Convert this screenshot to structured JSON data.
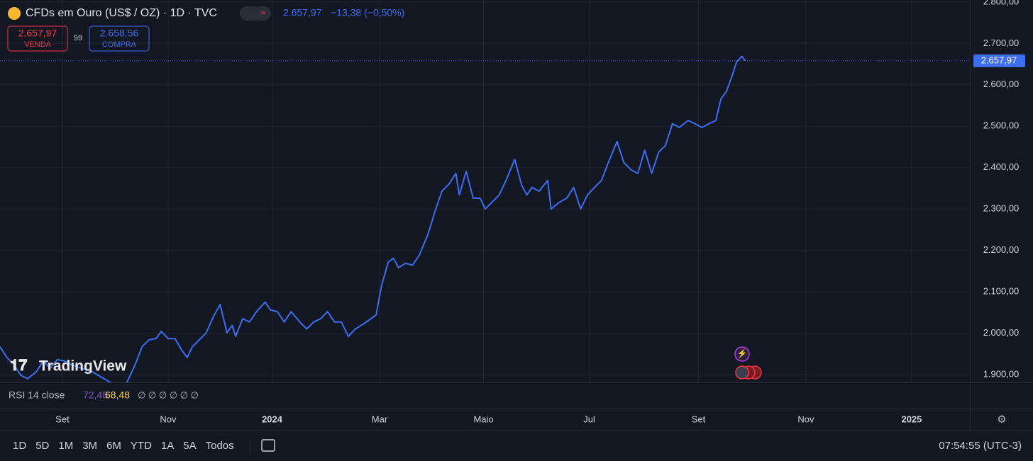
{
  "header": {
    "title": "CFDs em Ouro (US$ / OZ) · 1D · TVC",
    "price": "2.657,97",
    "change": "−13,38 (−0,50%)",
    "sell": {
      "price": "2.657,97",
      "label": "VENDA"
    },
    "spread": "59",
    "buy": {
      "price": "2.658,56",
      "label": "COMPRA"
    }
  },
  "watermark": "TradingView",
  "chart_data": {
    "type": "line",
    "color": "#3b6ef0",
    "grid": true,
    "x": [
      0,
      4,
      8,
      12,
      16,
      21,
      25,
      29,
      33,
      37,
      41,
      47,
      53,
      60,
      66,
      72,
      78,
      82,
      86,
      90,
      93,
      97,
      101,
      105,
      108,
      111,
      115,
      119,
      123,
      127,
      131,
      134,
      136,
      140,
      144,
      148,
      153,
      156,
      160,
      164,
      168,
      173,
      177,
      181,
      185,
      189,
      193,
      197,
      201,
      205,
      210,
      214,
      217,
      220,
      224,
      227,
      230,
      234,
      238,
      242,
      247,
      251,
      255,
      259,
      263,
      265,
      269,
      273,
      277,
      280,
      284,
      288,
      292,
      297,
      301,
      304,
      307,
      311,
      316,
      318,
      323,
      327,
      331,
      335,
      339,
      343,
      347,
      351,
      356,
      360,
      364,
      368,
      372,
      376,
      380,
      384,
      388,
      392,
      397,
      401,
      405,
      409,
      413,
      416,
      419,
      422,
      425,
      428,
      430
    ],
    "values": [
      1967,
      1941,
      1924,
      1898,
      1890,
      1907,
      1933,
      1915,
      1936,
      1933,
      1924,
      1915,
      1907,
      1890,
      1875,
      1870,
      1924,
      1967,
      1984,
      1987,
      2004,
      1987,
      1987,
      1958,
      1941,
      1967,
      1984,
      2001,
      2039,
      2069,
      2001,
      2019,
      1992,
      2035,
      2027,
      2052,
      2075,
      2056,
      2052,
      2027,
      2052,
      2027,
      2010,
      2027,
      2035,
      2052,
      2027,
      2027,
      1992,
      2010,
      2023,
      2035,
      2044,
      2112,
      2172,
      2181,
      2158,
      2169,
      2164,
      2189,
      2240,
      2295,
      2343,
      2360,
      2386,
      2334,
      2391,
      2326,
      2326,
      2300,
      2317,
      2334,
      2369,
      2420,
      2357,
      2334,
      2352,
      2343,
      2369,
      2300,
      2317,
      2326,
      2352,
      2300,
      2334,
      2352,
      2369,
      2412,
      2463,
      2412,
      2395,
      2386,
      2442,
      2386,
      2437,
      2454,
      2506,
      2497,
      2514,
      2506,
      2497,
      2506,
      2514,
      2566,
      2583,
      2617,
      2655,
      2669,
      2657.97
    ],
    "xlim": [
      0,
      560
    ],
    "xticks": [
      {
        "value": 36,
        "label": "Set"
      },
      {
        "value": 97,
        "label": "Nov"
      },
      {
        "value": 157,
        "label": "2024"
      },
      {
        "value": 219,
        "label": "Mar"
      },
      {
        "value": 279,
        "label": "Maio"
      },
      {
        "value": 340,
        "label": "Jul"
      },
      {
        "value": 403,
        "label": "Set"
      },
      {
        "value": 465,
        "label": "Nov"
      },
      {
        "value": 526,
        "label": "2025"
      }
    ],
    "ylim": [
      1881,
      2805
    ],
    "yticks": [
      {
        "value": 1900,
        "label": "1.900,00"
      },
      {
        "value": 2000,
        "label": "2.000,00"
      },
      {
        "value": 2100,
        "label": "2.100,00"
      },
      {
        "value": 2200,
        "label": "2.200,00"
      },
      {
        "value": 2300,
        "label": "2.300,00"
      },
      {
        "value": 2400,
        "label": "2.400,00"
      },
      {
        "value": 2500,
        "label": "2.500,00"
      },
      {
        "value": 2600,
        "label": "2.600,00"
      },
      {
        "value": 2700,
        "label": "2.700,00"
      },
      {
        "value": 2800,
        "label": "2.800,00"
      }
    ],
    "last_value": {
      "value": 2657.97,
      "label": "2.657,97"
    }
  },
  "indicator": {
    "name": "RSI 14 close",
    "values": [
      "72,48",
      "68,48"
    ],
    "empty": "∅ ∅ ∅ ∅ ∅ ∅"
  },
  "footer": {
    "ranges": [
      "1D",
      "5D",
      "1M",
      "3M",
      "6M",
      "YTD",
      "1A",
      "5A",
      "Todos"
    ],
    "time": "07:54:55 (UTC-3)"
  }
}
